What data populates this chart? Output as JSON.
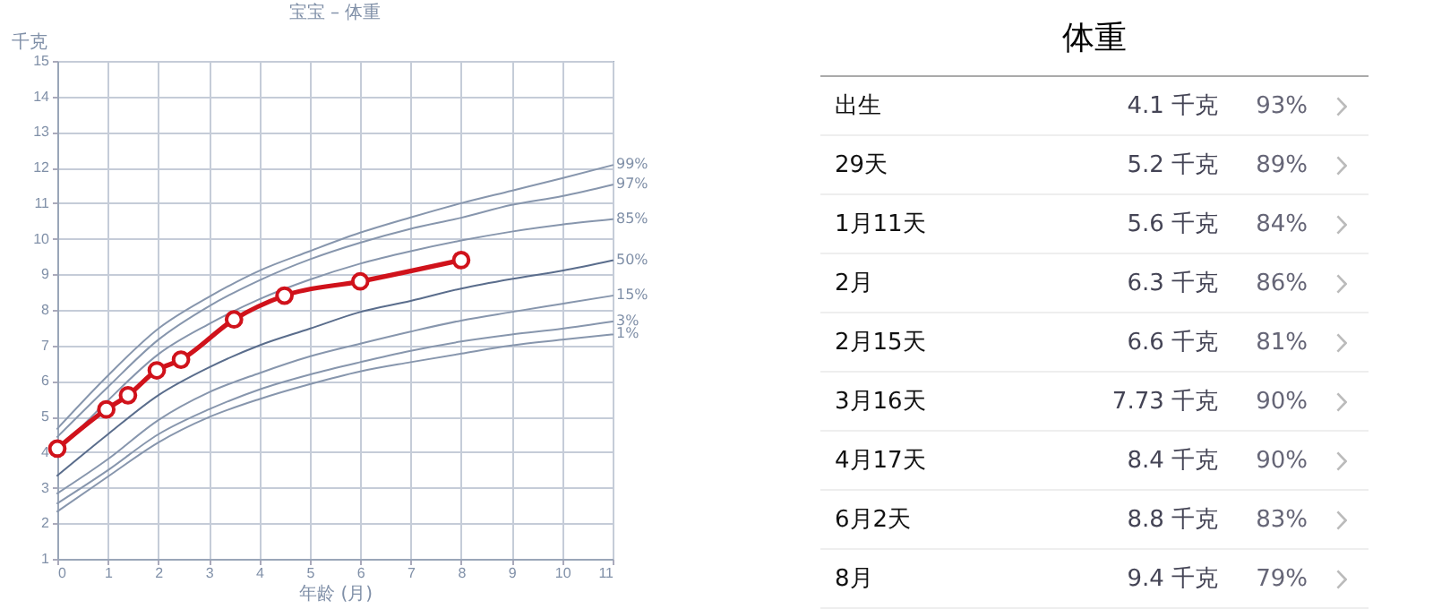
{
  "chart_data": [
    {
      "type": "line",
      "title": "宝宝 – 体重",
      "xlabel": "年龄 (月)",
      "ylabel": "千克",
      "x": [
        0,
        1,
        2,
        3,
        4,
        5,
        6,
        7,
        8,
        9,
        10,
        11
      ],
      "xlim": [
        0,
        11
      ],
      "xticks": [
        0,
        1,
        2,
        3,
        4,
        5,
        6,
        7,
        8,
        9,
        10,
        11
      ],
      "ylim": [
        1,
        15
      ],
      "yticks": [
        1,
        2,
        3,
        4,
        5,
        6,
        7,
        8,
        9,
        10,
        11,
        12,
        13,
        14,
        15
      ],
      "grid": true,
      "legend": false,
      "line_style": "solid",
      "series": [
        {
          "name": "99%",
          "color": "#8796ad",
          "values": [
            4.66,
            6.15,
            7.47,
            8.36,
            9.1,
            9.65,
            10.17,
            10.6,
            11.0,
            11.35,
            11.7,
            12.07
          ]
        },
        {
          "name": "97%",
          "color": "#8796ad",
          "values": [
            4.43,
            5.83,
            7.16,
            8.1,
            8.83,
            9.42,
            9.89,
            10.28,
            10.59,
            10.95,
            11.2,
            11.52
          ]
        },
        {
          "name": "85%",
          "color": "#8796ad",
          "values": [
            4.0,
            5.45,
            6.75,
            7.6,
            8.3,
            8.85,
            9.3,
            9.65,
            9.95,
            10.2,
            10.4,
            10.55
          ]
        },
        {
          "name": "50%",
          "color": "#5a6d8c",
          "values": [
            3.34,
            4.5,
            5.6,
            6.38,
            7.0,
            7.47,
            7.94,
            8.25,
            8.6,
            8.87,
            9.1,
            9.39
          ]
        },
        {
          "name": "15%",
          "color": "#8796ad",
          "values": [
            2.84,
            3.8,
            4.9,
            5.68,
            6.22,
            6.69,
            7.05,
            7.39,
            7.7,
            7.94,
            8.17,
            8.4
          ]
        },
        {
          "name": "3%",
          "color": "#8796ad",
          "values": [
            2.56,
            3.49,
            4.5,
            5.2,
            5.76,
            6.18,
            6.53,
            6.85,
            7.11,
            7.31,
            7.47,
            7.67
          ]
        },
        {
          "name": "1%",
          "color": "#8796ad",
          "values": [
            2.33,
            3.31,
            4.27,
            4.98,
            5.49,
            5.91,
            6.27,
            6.53,
            6.77,
            7.0,
            7.16,
            7.31
          ]
        },
        {
          "color": "#d0121b",
          "marker": "circle",
          "x": [
            0,
            0.97,
            1.4,
            1.97,
            2.45,
            3.5,
            4.5,
            6.0,
            8.0
          ],
          "values": [
            4.1,
            5.2,
            5.6,
            6.3,
            6.6,
            7.73,
            8.4,
            8.8,
            9.4
          ]
        }
      ]
    },
    {
      "type": "other",
      "title": "体重",
      "annotations": [
        "出生",
        "4.1 千克",
        "93%",
        "29天",
        "5.2 千克",
        "89%",
        "1月11天",
        "5.6 千克",
        "84%",
        "2月",
        "6.3 千克",
        "86%",
        "2月15天",
        "6.6 千克",
        "81%",
        "3月16天",
        "7.73 千克",
        "90%",
        "4月17天",
        "8.4 千克",
        "90%",
        "6月2天",
        "8.8 千克",
        "83%",
        "8月",
        "9.4 千克",
        "79%"
      ]
    }
  ]
}
